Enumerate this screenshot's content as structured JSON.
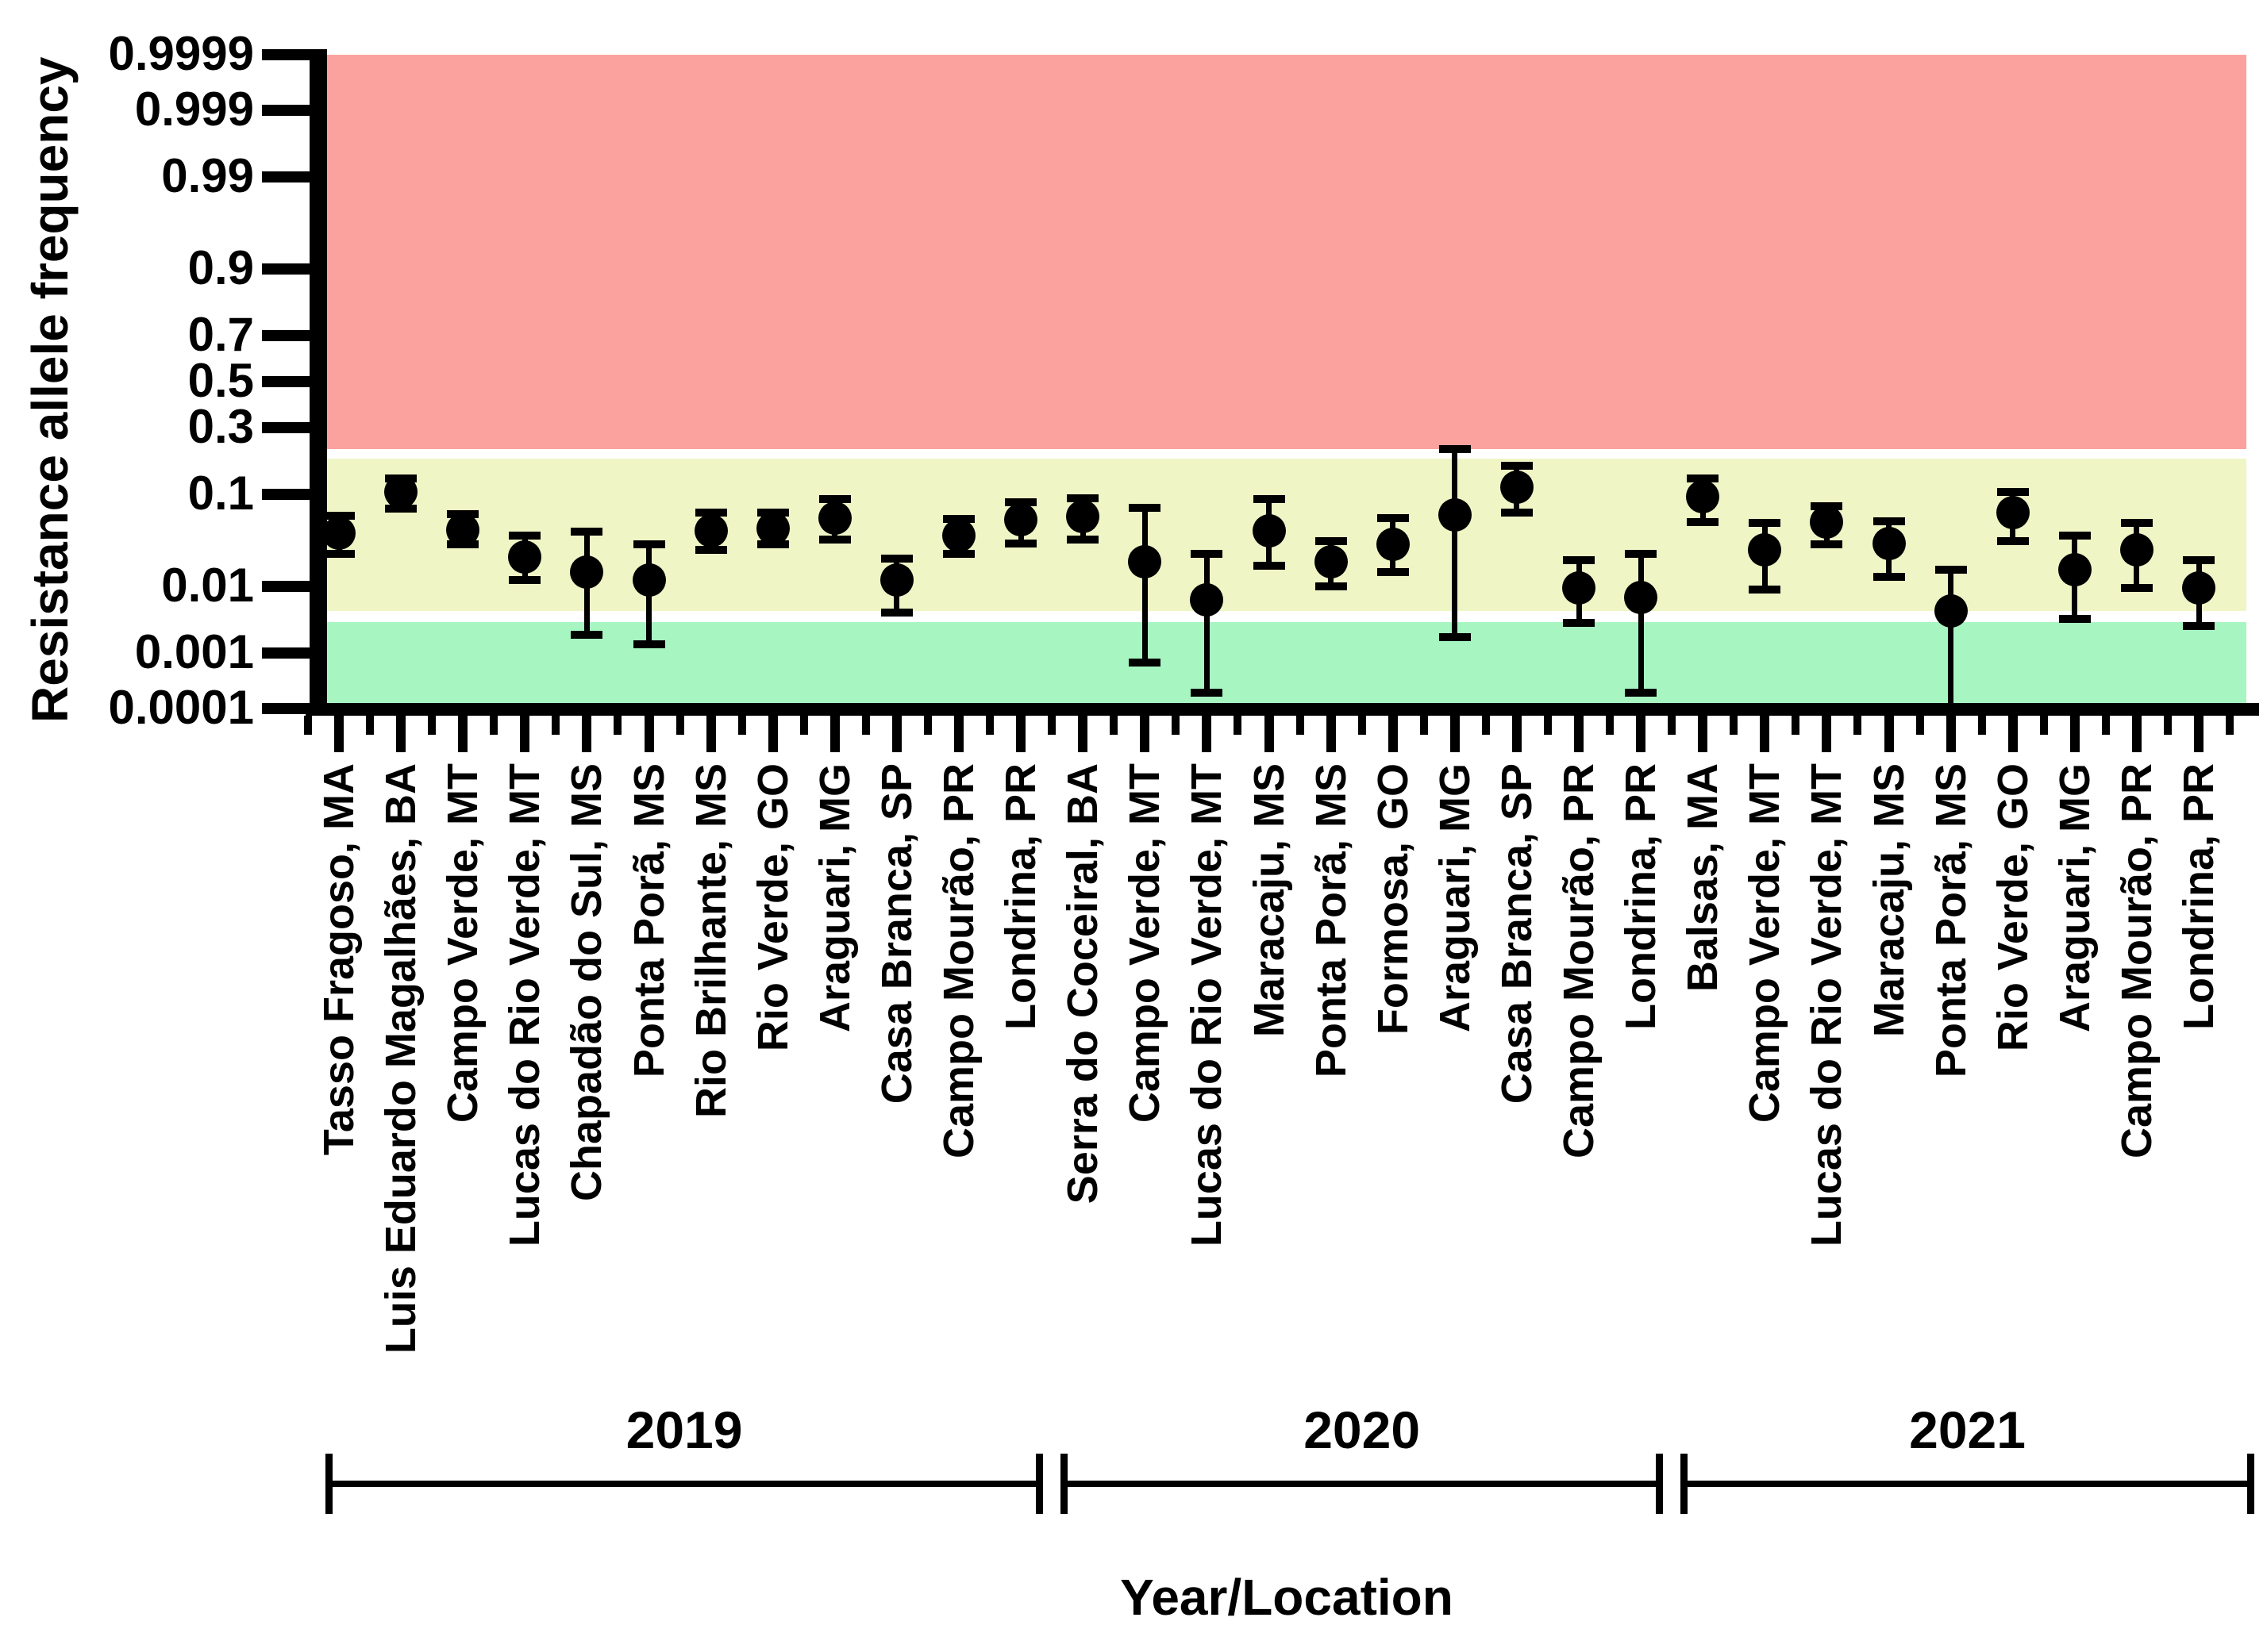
{
  "figure": {
    "ylabel": "Resistance allele frequency",
    "xlabel": "Year/Location"
  },
  "chart_data": {
    "type": "scatter",
    "y_scale": "probit",
    "title": "",
    "ylabel": "Resistance allele frequency",
    "xlabel": "Year/Location",
    "ylim": [
      0.0001,
      0.9999
    ],
    "grid": false,
    "legend": "none",
    "y_tick_labels": [
      "0.9999",
      "0.999",
      "0.99",
      "0.9",
      "0.7",
      "0.5",
      "0.3",
      "0.1",
      "0.01",
      "0.001",
      "0.0001"
    ],
    "marker": {
      "shape": "circle",
      "color": "#000000"
    },
    "bands": [
      {
        "name": "high-frequency-zone",
        "color": "#FCA29E",
        "from": 0.22,
        "to": 0.9999
      },
      {
        "name": "intermediate-frequency-zone",
        "color": "#F0F5C5",
        "from": 0.0045,
        "to": 0.19
      },
      {
        "name": "low-frequency-zone",
        "color": "#A7F6C2",
        "from": 0.0001,
        "to": 0.0031
      }
    ],
    "groups": [
      {
        "label": "2019",
        "count": 12
      },
      {
        "label": "2020",
        "count": 10
      },
      {
        "label": "2021",
        "count": 9
      }
    ],
    "points": [
      {
        "label": "Tasso Fragoso, MA",
        "year": "2019",
        "value": 0.042,
        "lo": 0.025,
        "hi": 0.064
      },
      {
        "label": "Luis Eduardo Magalhães, BA",
        "year": "2019",
        "value": 0.105,
        "lo": 0.074,
        "hi": 0.135
      },
      {
        "label": "Campo Verde, MT",
        "year": "2019",
        "value": 0.046,
        "lo": 0.032,
        "hi": 0.066
      },
      {
        "label": "Lucas do Rio Verde, MT",
        "year": "2019",
        "value": 0.023,
        "lo": 0.012,
        "hi": 0.04
      },
      {
        "label": "Chapadão do Sul, MS",
        "year": "2019",
        "value": 0.015,
        "lo": 0.002,
        "hi": 0.044
      },
      {
        "label": "Ponta Porã, MS",
        "year": "2019",
        "value": 0.012,
        "lo": 0.0014,
        "hi": 0.032
      },
      {
        "label": "Rio Brilhante, MS",
        "year": "2019",
        "value": 0.045,
        "lo": 0.028,
        "hi": 0.068
      },
      {
        "label": "Rio Verde, GO",
        "year": "2019",
        "value": 0.047,
        "lo": 0.032,
        "hi": 0.068
      },
      {
        "label": "Araguari, MG",
        "year": "2019",
        "value": 0.06,
        "lo": 0.036,
        "hi": 0.09
      },
      {
        "label": "Casa Branca, SP",
        "year": "2019",
        "value": 0.012,
        "lo": 0.0043,
        "hi": 0.022
      },
      {
        "label": "Campo Mourão, PR",
        "year": "2019",
        "value": 0.04,
        "lo": 0.025,
        "hi": 0.059
      },
      {
        "label": "Londrina, PR",
        "year": "2019",
        "value": 0.058,
        "lo": 0.033,
        "hi": 0.085
      },
      {
        "label": "Serra do Coceiral, BA",
        "year": "2020",
        "value": 0.062,
        "lo": 0.036,
        "hi": 0.092
      },
      {
        "label": "Campo Verde, MT",
        "year": "2020",
        "value": 0.02,
        "lo": 0.0007,
        "hi": 0.076
      },
      {
        "label": "Lucas do Rio Verde, MT",
        "year": "2020",
        "value": 0.0065,
        "lo": 0.0002,
        "hi": 0.025
      },
      {
        "label": "Maracaju, MS",
        "year": "2020",
        "value": 0.045,
        "lo": 0.018,
        "hi": 0.09
      },
      {
        "label": "Ponta Porã, MS",
        "year": "2020",
        "value": 0.02,
        "lo": 0.01,
        "hi": 0.035
      },
      {
        "label": "Formosa, GO",
        "year": "2020",
        "value": 0.032,
        "lo": 0.015,
        "hi": 0.06
      },
      {
        "label": "Araguari, MG",
        "year": "2020",
        "value": 0.065,
        "lo": 0.0018,
        "hi": 0.22
      },
      {
        "label": "Casa Branca, SP",
        "year": "2020",
        "value": 0.115,
        "lo": 0.068,
        "hi": 0.17
      },
      {
        "label": "Campo Mourão, PR",
        "year": "2020",
        "value": 0.0095,
        "lo": 0.003,
        "hi": 0.021
      },
      {
        "label": "Londrina, PR",
        "year": "2020",
        "value": 0.007,
        "lo": 0.0002,
        "hi": 0.025
      },
      {
        "label": "Balsas, MA",
        "year": "2021",
        "value": 0.095,
        "lo": 0.055,
        "hi": 0.135
      },
      {
        "label": "Campo Verde, MT",
        "year": "2021",
        "value": 0.028,
        "lo": 0.009,
        "hi": 0.054
      },
      {
        "label": "Lucas do Rio Verde, MT",
        "year": "2021",
        "value": 0.055,
        "lo": 0.032,
        "hi": 0.078
      },
      {
        "label": "Maracaju, MS",
        "year": "2021",
        "value": 0.033,
        "lo": 0.013,
        "hi": 0.056
      },
      {
        "label": "Ponta Porã, MS",
        "year": "2021",
        "value": 0.0045,
        "lo": 0.0001,
        "hi": 0.016
      },
      {
        "label": "Rio Verde, GO",
        "year": "2021",
        "value": 0.068,
        "lo": 0.035,
        "hi": 0.105
      },
      {
        "label": "Araguari, MG",
        "year": "2021",
        "value": 0.016,
        "lo": 0.0035,
        "hi": 0.04
      },
      {
        "label": "Campo Mourão, PR",
        "year": "2021",
        "value": 0.028,
        "lo": 0.0095,
        "hi": 0.054
      },
      {
        "label": "Londrina, PR",
        "year": "2021",
        "value": 0.0095,
        "lo": 0.0027,
        "hi": 0.021
      }
    ]
  }
}
